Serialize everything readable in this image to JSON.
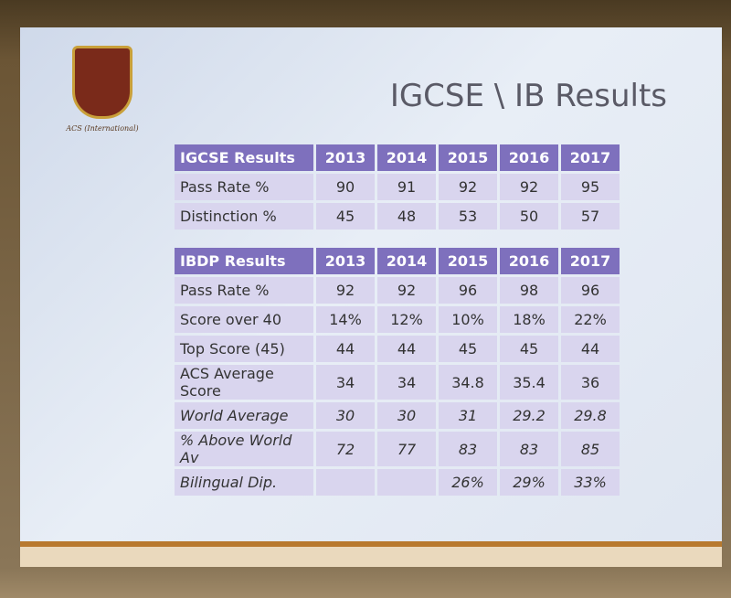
{
  "logo": {
    "caption": "ACS (International)"
  },
  "title": "IGCSE \\ IB Results",
  "tables": [
    {
      "header": [
        "IGCSE Results",
        "2013",
        "2014",
        "2015",
        "2016",
        "2017"
      ],
      "rows": [
        [
          "Pass Rate %",
          "90",
          "91",
          "92",
          "92",
          "95"
        ],
        [
          "Distinction %",
          "45",
          "48",
          "53",
          "50",
          "57"
        ]
      ]
    },
    {
      "header": [
        "IBDP Results",
        "2013",
        "2014",
        "2015",
        "2016",
        "2017"
      ],
      "rows": [
        [
          "Pass Rate %",
          "92",
          "92",
          "96",
          "98",
          "96"
        ],
        [
          "Score over 40",
          "14%",
          "12%",
          "10%",
          "18%",
          "22%"
        ],
        [
          "Top Score (45)",
          "44",
          "44",
          "45",
          "45",
          "44"
        ],
        [
          "ACS Average Score",
          "34",
          "34",
          "34.8",
          "35.4",
          "36"
        ],
        [
          "World Average",
          "30",
          "30",
          "31",
          "29.2",
          "29.8"
        ],
        [
          "% Above World Av",
          "72",
          "77",
          "83",
          "83",
          "85"
        ],
        [
          "Bilingual Dip.",
          null,
          null,
          "26%",
          "29%",
          "33%"
        ]
      ]
    }
  ]
}
